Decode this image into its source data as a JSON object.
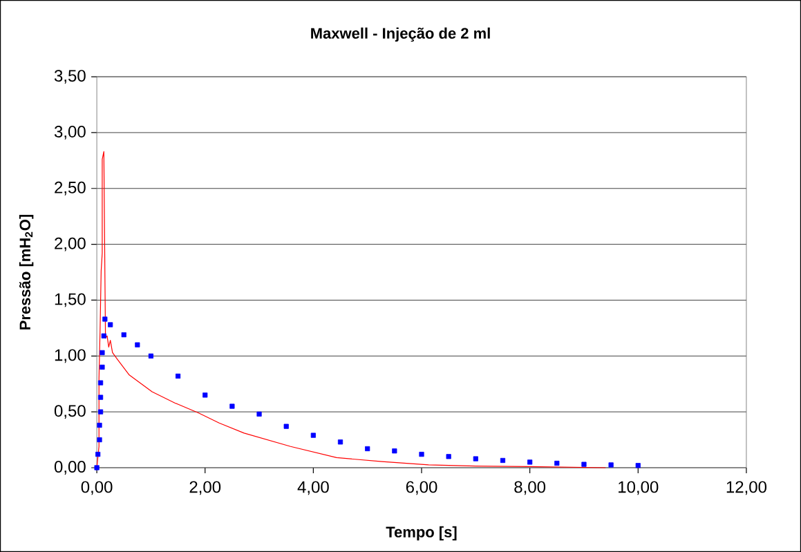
{
  "chart_data": {
    "type": "line",
    "title": "Maxwell - Injeção de 2 ml",
    "xlabel": "Tempo [s]",
    "ylabel": "Pressão [mH$_{2}$O]",
    "xlim": [
      0,
      12
    ],
    "ylim": [
      0,
      3.5
    ],
    "xticks": [
      {
        "value": 0,
        "label": "0,00"
      },
      {
        "value": 2,
        "label": "2,00"
      },
      {
        "value": 4,
        "label": "4,00"
      },
      {
        "value": 6,
        "label": "6,00"
      },
      {
        "value": 8,
        "label": "8,00"
      },
      {
        "value": 10,
        "label": "10,00"
      },
      {
        "value": 12,
        "label": "12,00"
      }
    ],
    "yticks": [
      {
        "value": 0,
        "label": "0,00"
      },
      {
        "value": 0.5,
        "label": "0,50"
      },
      {
        "value": 1,
        "label": "1,00"
      },
      {
        "value": 1.5,
        "label": "1,50"
      },
      {
        "value": 2,
        "label": "2,00"
      },
      {
        "value": 2.5,
        "label": "2,50"
      },
      {
        "value": 3,
        "label": "3,00"
      },
      {
        "value": 3.5,
        "label": "3,50"
      }
    ],
    "grid": "y",
    "series": [
      {
        "color": "#ff0000",
        "marker": "none",
        "x": [
          0,
          0.04,
          0.04,
          0.06,
          0.08,
          0.1,
          0.1,
          0.13,
          0.15,
          0.16,
          0.19,
          0.22,
          0.25,
          0.29,
          0.38,
          0.6,
          1.02,
          1.44,
          1.88,
          2.26,
          2.72,
          3.58,
          4.43,
          5.27,
          6.13,
          7.0,
          8.0,
          9.4
        ],
        "values": [
          0,
          0.19,
          0.8,
          1.22,
          1.76,
          1.92,
          2.76,
          2.83,
          1.7,
          1.16,
          1.18,
          1.08,
          1.14,
          1.03,
          0.97,
          0.83,
          0.68,
          0.58,
          0.49,
          0.4,
          0.31,
          0.19,
          0.09,
          0.055,
          0.025,
          0.015,
          0.01,
          0.0
        ]
      },
      {
        "type": "scatter",
        "color": "#0000ff",
        "marker": "square",
        "x": [
          0,
          0.02,
          0.05,
          0.05,
          0.07,
          0.07,
          0.07,
          0.1,
          0.1,
          0.13,
          0.15,
          0.25,
          0.5,
          0.75,
          1.0,
          1.5,
          2.0,
          2.5,
          3.0,
          3.5,
          4.0,
          4.5,
          5.0,
          5.5,
          6.0,
          6.5,
          7.0,
          7.5,
          8.0,
          8.5,
          9.0,
          9.5,
          10.0
        ],
        "values": [
          0,
          0.12,
          0.25,
          0.38,
          0.5,
          0.63,
          0.76,
          0.9,
          1.03,
          1.18,
          1.33,
          1.28,
          1.19,
          1.1,
          1.0,
          0.82,
          0.65,
          0.55,
          0.48,
          0.37,
          0.29,
          0.23,
          0.17,
          0.15,
          0.12,
          0.1,
          0.08,
          0.065,
          0.05,
          0.04,
          0.03,
          0.025,
          0.02
        ]
      }
    ]
  }
}
